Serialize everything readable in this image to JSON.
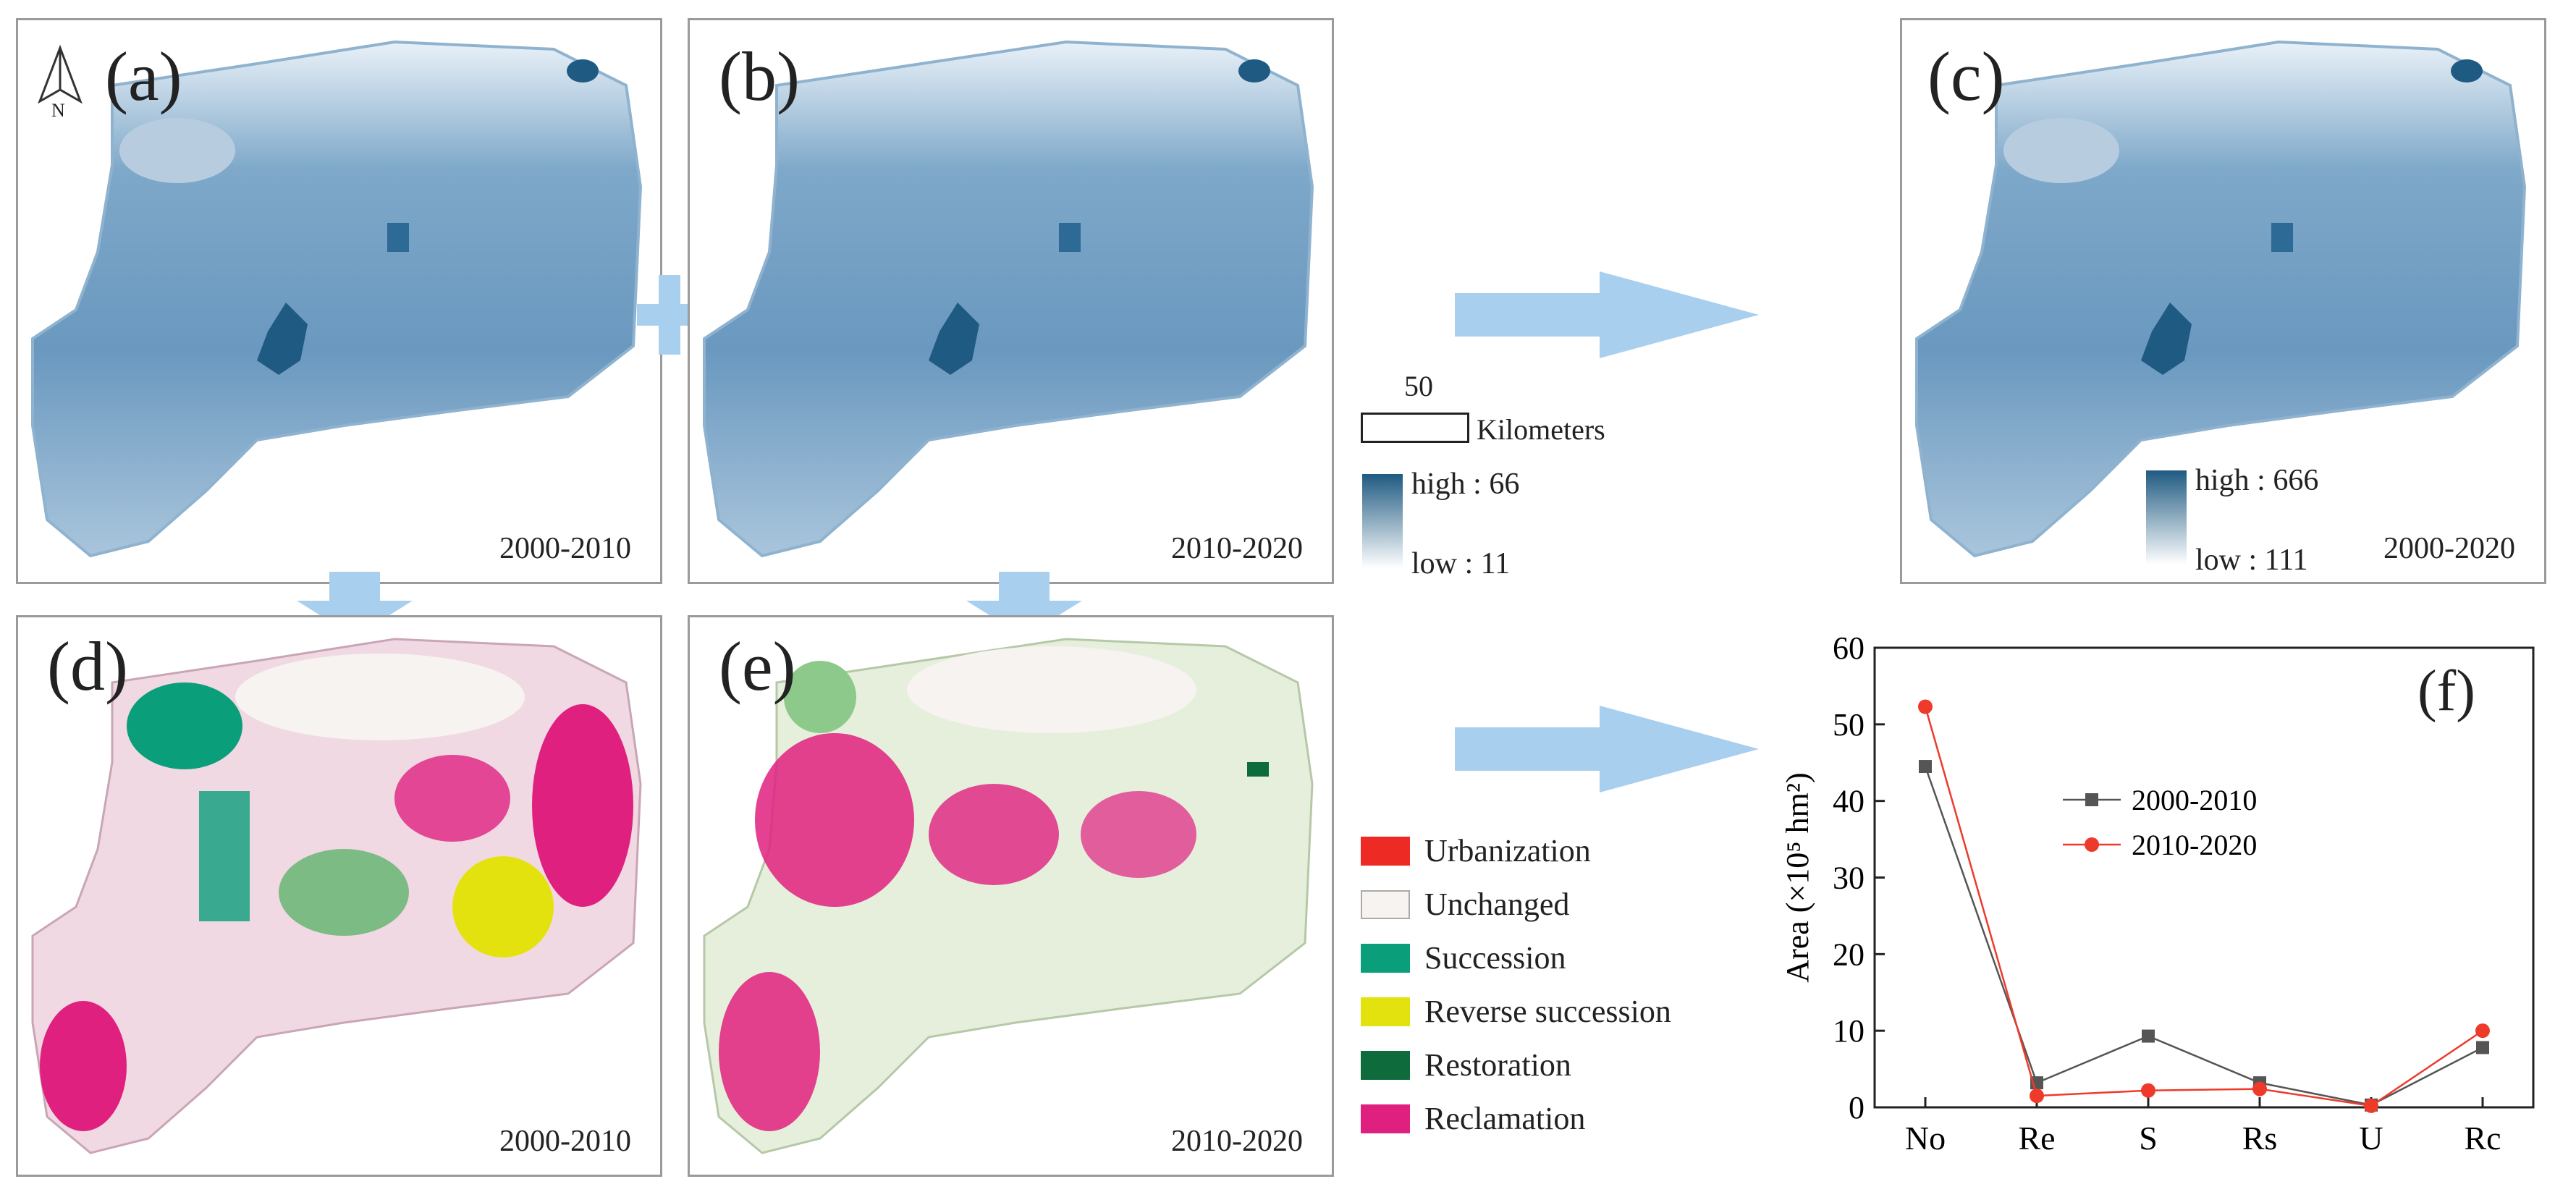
{
  "panels": {
    "a": {
      "label": "(a)",
      "period": "2000-2010"
    },
    "b": {
      "label": "(b)",
      "period": "2010-2020"
    },
    "c": {
      "label": "(c)",
      "period": "2000-2020"
    },
    "d": {
      "label": "(d)",
      "period": "2000-2010"
    },
    "e": {
      "label": "(e)",
      "period": "2010-2020"
    },
    "f": {
      "label": "(f)"
    }
  },
  "north_arrow": {
    "letter": "N"
  },
  "scale_bar": {
    "value": "50",
    "unit": "Kilometers"
  },
  "gradient_legend_ab": {
    "high": "high : 66",
    "low": "low : 11"
  },
  "gradient_legend_c": {
    "high": "high : 666",
    "low": "low : 111"
  },
  "colors": {
    "map_dark": "#1f5a82",
    "map_mid": "#6d9bbf",
    "map_light": "#c8dbea",
    "arrow": "#a9cfee",
    "urbanization": "#ee2a24",
    "unchanged": "#f6f3f0",
    "succession": "#0b9e7a",
    "reverse_succession": "#e4e20e",
    "restoration": "#0d6b3c",
    "reclamation": "#e0207f",
    "series_2000": "#555555",
    "series_2010": "#ee3a2a"
  },
  "change_legend": [
    {
      "label": "Urbanization",
      "color": "#ee2a24"
    },
    {
      "label": "Unchanged",
      "color": "#f6f3f0"
    },
    {
      "label": "Succession",
      "color": "#0b9e7a"
    },
    {
      "label": "Reverse succession",
      "color": "#e4e20e"
    },
    {
      "label": "Restoration",
      "color": "#0d6b3c"
    },
    {
      "label": "Reclamation",
      "color": "#e0207f"
    }
  ],
  "chart_data": {
    "type": "line",
    "categories": [
      "No",
      "Re",
      "S",
      "Rs",
      "U",
      "Rc"
    ],
    "series": [
      {
        "name": "2000-2010",
        "values": [
          44.5,
          3.2,
          9.3,
          3.2,
          0.3,
          7.8
        ],
        "color": "#555555",
        "marker": "square"
      },
      {
        "name": "2010-2020",
        "values": [
          52.3,
          1.5,
          2.2,
          2.4,
          0.2,
          10.0
        ],
        "color": "#ee3a2a",
        "marker": "circle"
      }
    ],
    "ylabel": "Area (×10⁵ hm²)",
    "ylim": [
      0,
      60
    ],
    "yticks": [
      0,
      10,
      20,
      30,
      40,
      50,
      60
    ],
    "legend_placement": "upper-center",
    "grid": false
  }
}
